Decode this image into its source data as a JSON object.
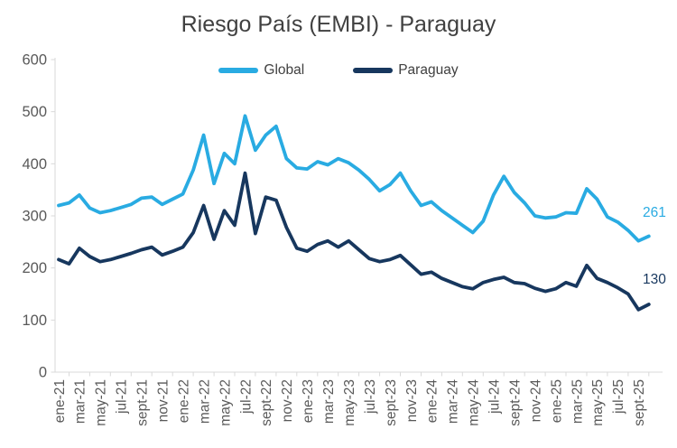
{
  "title": "Riesgo País (EMBI) - Paraguay",
  "colors": {
    "global_line": "#29ABE2",
    "paraguay_line": "#17375E",
    "axis_line": "#D9D9D9",
    "tick_label": "#595959",
    "title_text": "#404040"
  },
  "chart_data": {
    "type": "line",
    "title": "Riesgo País (EMBI) - Paraguay",
    "x_frequency": "monthly",
    "x_range": [
      "ene-21",
      "oct-25"
    ],
    "x_tick_labels": [
      "ene-21",
      "mar-21",
      "may-21",
      "jul-21",
      "sept-21",
      "nov-21",
      "ene-22",
      "mar-22",
      "may-22",
      "jul-22",
      "sept-22",
      "nov-22",
      "ene-23",
      "mar-23",
      "may-23",
      "jul-23",
      "sept-23",
      "nov-23",
      "ene-24",
      "mar-24",
      "may-24",
      "jul-24",
      "sept-24",
      "nov-24",
      "ene-25",
      "mar-25",
      "may-25",
      "jul-25",
      "sept-25"
    ],
    "ylim": [
      0,
      600
    ],
    "y_tick_step": 100,
    "grid": false,
    "legend_position": "top-center",
    "series": [
      {
        "name": "Global",
        "color": "#29ABE2",
        "end_label": "261",
        "values": [
          320,
          325,
          340,
          315,
          306,
          310,
          316,
          322,
          334,
          336,
          322,
          332,
          342,
          388,
          455,
          362,
          420,
          400,
          492,
          426,
          455,
          472,
          410,
          392,
          390,
          404,
          398,
          410,
          402,
          388,
          370,
          348,
          360,
          382,
          348,
          320,
          327,
          310,
          296,
          282,
          268,
          290,
          340,
          376,
          345,
          325,
          300,
          296,
          298,
          306,
          305,
          352,
          332,
          298,
          288,
          272,
          252,
          261
        ]
      },
      {
        "name": "Paraguay",
        "color": "#17375E",
        "end_label": "130",
        "values": [
          216,
          208,
          238,
          222,
          212,
          216,
          222,
          228,
          235,
          240,
          225,
          232,
          240,
          268,
          320,
          255,
          310,
          282,
          382,
          266,
          336,
          330,
          278,
          238,
          232,
          245,
          252,
          240,
          252,
          235,
          218,
          212,
          216,
          224,
          206,
          188,
          192,
          180,
          172,
          164,
          160,
          172,
          178,
          182,
          172,
          170,
          161,
          155,
          160,
          172,
          165,
          205,
          180,
          172,
          162,
          150,
          120,
          130
        ]
      }
    ]
  }
}
